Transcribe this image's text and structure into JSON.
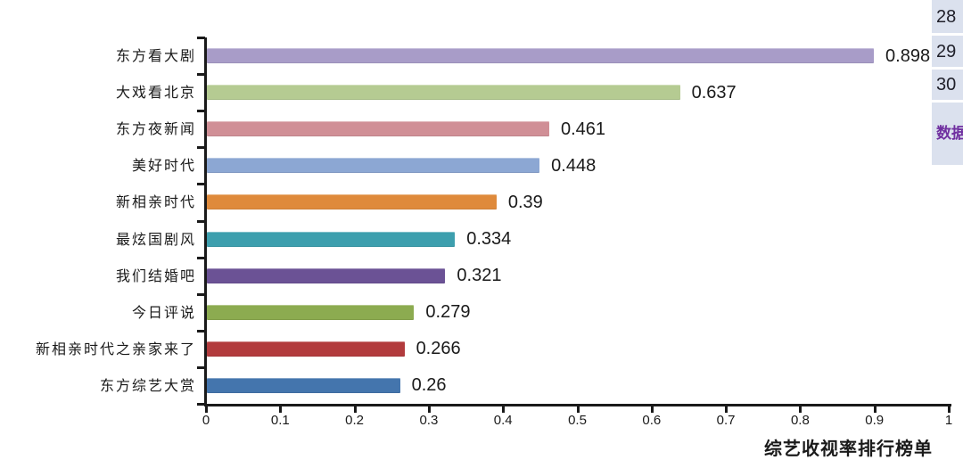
{
  "chart_data": {
    "type": "bar",
    "orientation": "horizontal",
    "title": "综艺收视率排行榜单",
    "categories": [
      "东方看大剧",
      "大戏看北京",
      "东方夜新闻",
      "美好时代",
      "新相亲时代",
      "最炫国剧风",
      "我们结婚吧",
      "今日评说",
      "新相亲时代之亲家来了",
      "东方综艺大赏"
    ],
    "values": [
      0.898,
      0.637,
      0.461,
      0.448,
      0.39,
      0.334,
      0.321,
      0.279,
      0.266,
      0.26
    ],
    "value_labels": [
      "0.898",
      "0.637",
      "0.461",
      "0.448",
      "0.39",
      "0.334",
      "0.321",
      "0.279",
      "0.266",
      "0.26"
    ],
    "bar_colors": [
      "#a89cc8",
      "#b5cb92",
      "#d08f96",
      "#8ca7d3",
      "#df8a3b",
      "#3d9fae",
      "#6b5295",
      "#8cab50",
      "#b23b3d",
      "#4475ad"
    ],
    "xlim": [
      0,
      1
    ],
    "x_ticks": [
      "0",
      "0.1",
      "0.2",
      "0.3",
      "0.4",
      "0.5",
      "0.6",
      "0.7",
      "0.8",
      "0.9",
      "1"
    ],
    "grid": "off",
    "legend": "none",
    "axis_color": "#1a1a1a"
  },
  "side_panel": {
    "background": "#dbe1ee",
    "text_color": "#20202a",
    "items": [
      {
        "label": "28"
      },
      {
        "label": "29"
      },
      {
        "label": "30"
      }
    ],
    "highlight": {
      "label": "数据",
      "color": "#7030a0"
    }
  }
}
